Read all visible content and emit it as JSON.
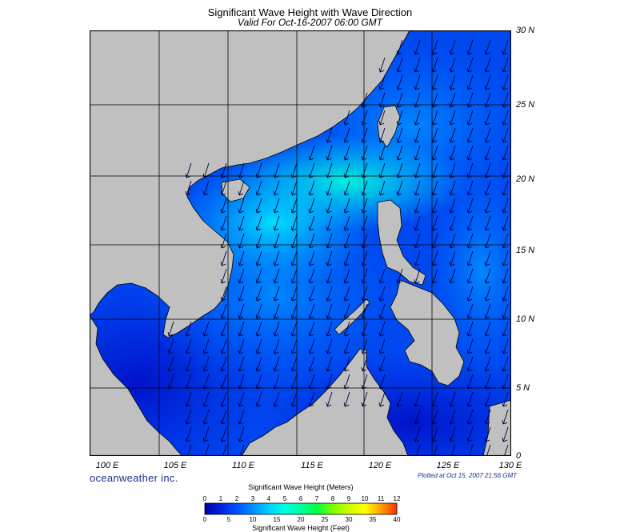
{
  "title": "Significant Wave Height with Wave Direction",
  "subtitle": "Valid For Oct-16-2007 06:00 GMT",
  "lat_labels": [
    "30 N",
    "25 N",
    "20 N",
    "15 N",
    "10 N",
    "5 N",
    "0"
  ],
  "lon_labels": [
    "100 E",
    "105 E",
    "110 E",
    "115 E",
    "120 E",
    "125 E",
    "130 E"
  ],
  "branding": "oceanweather inc.",
  "plotted_text": "Plotted at Oct 15, 2007 21:56 GMT",
  "legend": {
    "meters_title": "Significant Wave Height (Meters)",
    "meters_ticks": [
      "0",
      "1",
      "2",
      "3",
      "4",
      "5",
      "6",
      "7",
      "8",
      "9",
      "10",
      "11",
      "12"
    ],
    "feet_title": "Significant Wave Height (Feet)",
    "feet_ticks": [
      "0",
      "5",
      "10",
      "15",
      "20",
      "25",
      "30",
      "35",
      "40"
    ],
    "colors": [
      "#0000a8",
      "#0022dd",
      "#0050ff",
      "#0090ff",
      "#00d0ff",
      "#00ffe0",
      "#00ffa0",
      "#00ff40",
      "#7fff00",
      "#ccff00",
      "#ffff00",
      "#ffa000",
      "#ff3000"
    ]
  },
  "colors": {
    "land": "#c0c0c0",
    "grid": "#000000",
    "arrow": "#000040",
    "text_blue": "#1b2f8c"
  }
}
